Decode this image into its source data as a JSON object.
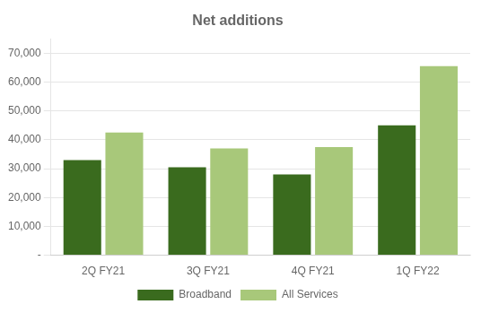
{
  "chart_data": {
    "type": "bar",
    "title": "Net additions",
    "categories": [
      "2Q FY21",
      "3Q FY21",
      "4Q FY21",
      "1Q FY22"
    ],
    "series": [
      {
        "name": "Broadband",
        "color": "#3A6B1E",
        "values": [
          33000,
          30500,
          28000,
          45000
        ]
      },
      {
        "name": "All Services",
        "color": "#A8C87A",
        "values": [
          42500,
          37000,
          37500,
          65500
        ]
      }
    ],
    "ylim": [
      0,
      75000
    ],
    "yticks": [
      {
        "value": 0,
        "label": "-"
      },
      {
        "value": 10000,
        "label": "10,000"
      },
      {
        "value": 20000,
        "label": "20,000"
      },
      {
        "value": 30000,
        "label": "30,000"
      },
      {
        "value": 40000,
        "label": "40,000"
      },
      {
        "value": 50000,
        "label": "50,000"
      },
      {
        "value": 60000,
        "label": "60,000"
      },
      {
        "value": 70000,
        "label": "70,000"
      }
    ],
    "grid": true,
    "legend": "bottom"
  }
}
